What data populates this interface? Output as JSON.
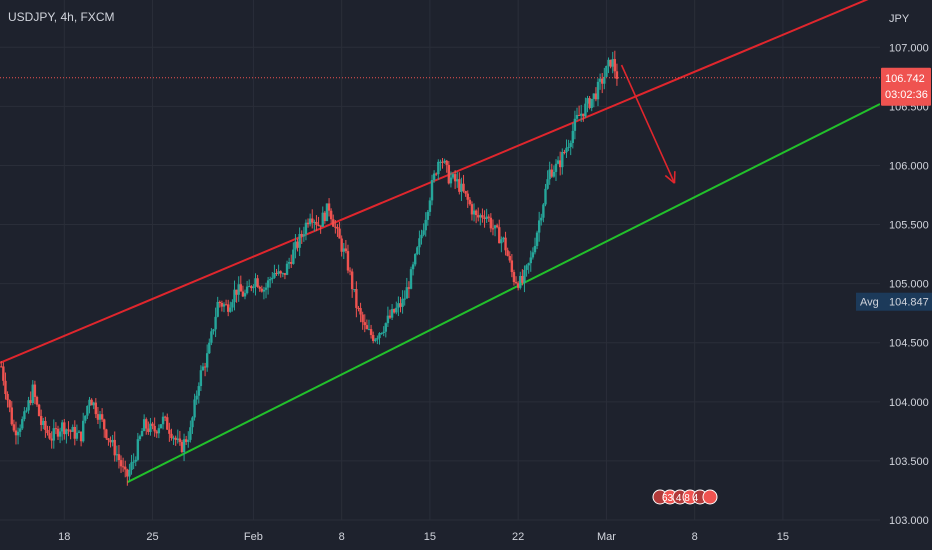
{
  "symbol_label": "USDJPY, 4h, FXCM",
  "currency": "JPY",
  "price": {
    "current": "106.742",
    "countdown": "03:02:36",
    "avg_label": "Avg",
    "avg_value": "104.847"
  },
  "events": {
    "label": "63 4 8 4"
  },
  "colors": {
    "background": "#1e222d",
    "up": "#26a69a",
    "down": "#ef5350",
    "channel_upper": "#e0262d",
    "channel_lower": "#22c12b",
    "arrow": "#e0262d",
    "grid": "#2a2e39",
    "price_line": "#ef5350",
    "axis_text": "#d1d4dc",
    "avg_bg": "#1c3a5a"
  },
  "chart_data": {
    "type": "candlestick",
    "title": "USDJPY, 4h, FXCM",
    "x_labels": [
      {
        "label": "18",
        "x": 17
      },
      {
        "label": "25",
        "x": 24
      },
      {
        "label": "Feb",
        "x": 32
      },
      {
        "label": "8",
        "x": 39
      },
      {
        "label": "15",
        "x": 46
      },
      {
        "label": "22",
        "x": 53
      },
      {
        "label": "Mar",
        "x": 60
      },
      {
        "label": "8",
        "x": 67
      },
      {
        "label": "15",
        "x": 74
      }
    ],
    "xlim": [
      11.9,
      81.7
    ],
    "ylim": [
      103.0,
      107.4
    ],
    "y_ticks": [
      "103.000",
      "103.500",
      "104.000",
      "104.500",
      "105.000",
      "105.500",
      "106.000",
      "106.500",
      "107.000"
    ],
    "series_path": [
      [
        12,
        104.3
      ],
      [
        13,
        103.75
      ],
      [
        13.8,
        103.85
      ],
      [
        14.5,
        104.1
      ],
      [
        15.2,
        103.8
      ],
      [
        16,
        103.7
      ],
      [
        16.8,
        103.8
      ],
      [
        17.5,
        103.75
      ],
      [
        18.3,
        103.7
      ],
      [
        19,
        104.05
      ],
      [
        19.7,
        103.9
      ],
      [
        20.5,
        103.7
      ],
      [
        21.2,
        103.55
      ],
      [
        21.9,
        103.35
      ],
      [
        22.5,
        103.5
      ],
      [
        23.3,
        103.8
      ],
      [
        24.1,
        103.75
      ],
      [
        24.8,
        103.85
      ],
      [
        25.5,
        103.75
      ],
      [
        26.2,
        103.6
      ],
      [
        27,
        103.75
      ],
      [
        27.7,
        104.2
      ],
      [
        28.4,
        104.4
      ],
      [
        29.2,
        104.85
      ],
      [
        29.9,
        104.8
      ],
      [
        30.6,
        104.95
      ],
      [
        31.4,
        104.9
      ],
      [
        32.1,
        105.05
      ],
      [
        32.9,
        104.95
      ],
      [
        33.6,
        105.1
      ],
      [
        34.3,
        105.05
      ],
      [
        35.1,
        105.25
      ],
      [
        35.8,
        105.4
      ],
      [
        36.5,
        105.6
      ],
      [
        37.2,
        105.5
      ],
      [
        38,
        105.65
      ],
      [
        38.7,
        105.4
      ],
      [
        39.4,
        105.2
      ],
      [
        40.2,
        104.8
      ],
      [
        40.9,
        104.6
      ],
      [
        41.6,
        104.55
      ],
      [
        42.4,
        104.65
      ],
      [
        43.1,
        104.75
      ],
      [
        43.9,
        104.85
      ],
      [
        44.6,
        105.1
      ],
      [
        45.3,
        105.4
      ],
      [
        46.1,
        105.8
      ],
      [
        46.8,
        106.1
      ],
      [
        47.5,
        105.9
      ],
      [
        48.2,
        105.85
      ],
      [
        49,
        105.7
      ],
      [
        49.7,
        105.55
      ],
      [
        50.4,
        105.6
      ],
      [
        51.1,
        105.45
      ],
      [
        51.9,
        105.35
      ],
      [
        52.6,
        105.05
      ],
      [
        53.3,
        105.0
      ],
      [
        54,
        105.2
      ],
      [
        54.8,
        105.6
      ],
      [
        55.5,
        105.95
      ],
      [
        56.2,
        106.0
      ],
      [
        57,
        106.2
      ],
      [
        57.7,
        106.4
      ],
      [
        58.4,
        106.5
      ],
      [
        59.1,
        106.6
      ],
      [
        59.8,
        106.75
      ],
      [
        60.4,
        106.9
      ],
      [
        60.9,
        106.74
      ]
    ],
    "channel_upper": {
      "from": [
        11.9,
        104.33
      ],
      "to": [
        81.7,
        107.45
      ]
    },
    "channel_lower": {
      "from": [
        22.0,
        103.32
      ],
      "to": [
        81.7,
        106.52
      ]
    },
    "projection_arrow": {
      "from": [
        61.2,
        106.85
      ],
      "to": [
        65.4,
        105.85
      ]
    }
  }
}
